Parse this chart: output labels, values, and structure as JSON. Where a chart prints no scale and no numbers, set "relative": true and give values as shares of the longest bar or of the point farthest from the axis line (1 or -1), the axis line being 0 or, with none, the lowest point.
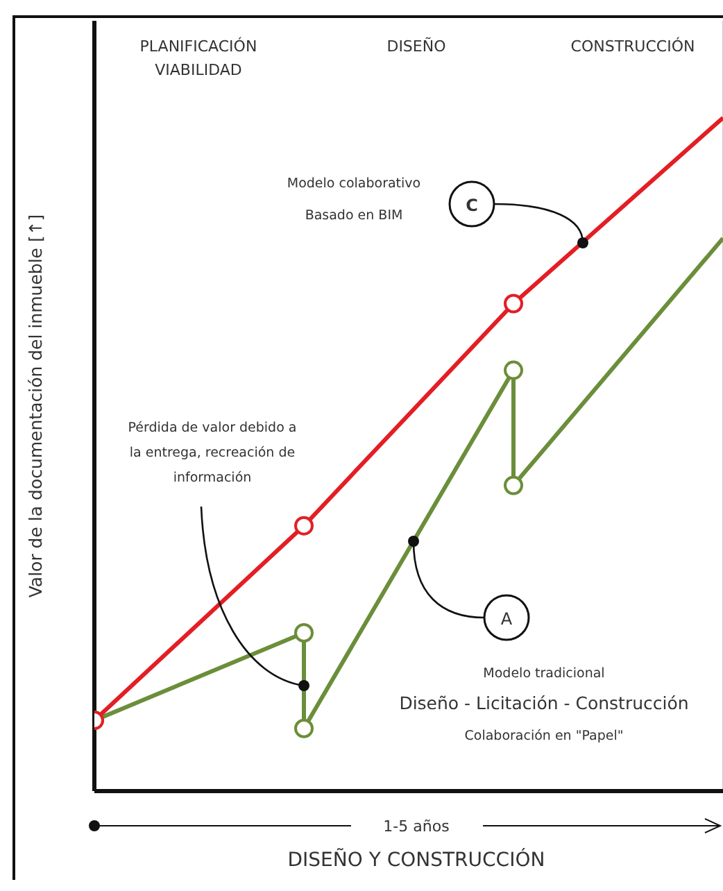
{
  "chart_data": {
    "type": "line",
    "relative": true,
    "ylabel": "Valor de la documentación del inmueble [↑]",
    "xlabel": "DISEÑO Y CONSTRUCCIÓN",
    "categories": [
      null,
      null,
      null,
      null
    ],
    "tick_labels": false,
    "marker": "circle",
    "line_style": "solid",
    "grid": "x",
    "series": [
      {
        "color": "#e31e24",
        "values": [
          0.105,
          0.394,
          0.724,
          1
        ]
      },
      {
        "color": "#6b8e3a",
        "values": [
          0.105,
          0.235,
          null,
          null
        ]
      },
      {
        "color": "#6b8e3a",
        "values": [
          null,
          0.093,
          0.625,
          null
        ]
      },
      {
        "color": "#6b8e3a",
        "values": [
          null,
          null,
          0.454,
          0.821
        ]
      }
    ],
    "annotations": [
      "PLANIFICACIÓN\nVIABILIDAD",
      "DISEÑO",
      "CONSTRUCCIÓN",
      "C",
      "Modelo colaborativo\nBasado en BIM",
      "Pérdida de valor debido a\nla entrega, recreación de\ninformación",
      "A",
      "Modelo tradicional",
      "Diseño - Licitación - Construcción",
      "Colaboración en \"Papel\"",
      "1-5 años"
    ]
  }
}
